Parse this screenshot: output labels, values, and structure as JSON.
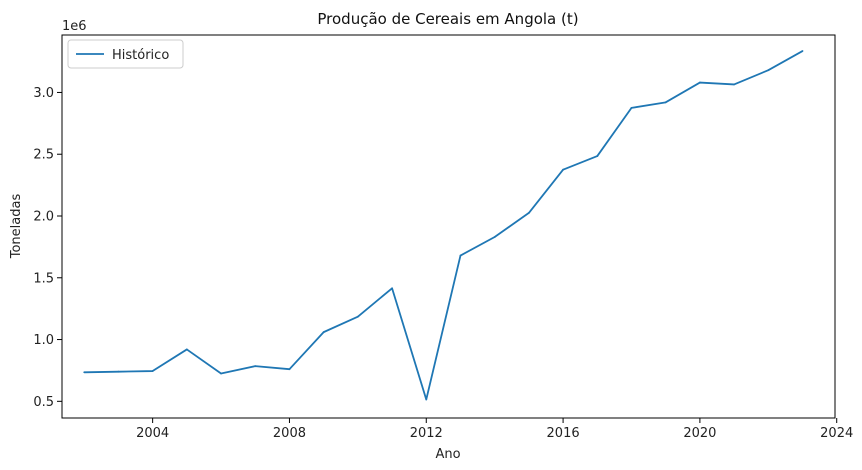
{
  "chart_data": {
    "type": "line",
    "title": "Produção de Cereais em Angola (t)",
    "xlabel": "Ano",
    "ylabel": "Toneladas",
    "y_offset_label": "1e6",
    "xlim": [
      2001.35,
      2023.95
    ],
    "ylim": [
      0.365,
      3.465
    ],
    "y_scale_multiplier": 1000000,
    "x_ticks": [
      2004,
      2008,
      2012,
      2016,
      2020,
      2024
    ],
    "y_ticks": [
      0.5,
      1.0,
      1.5,
      2.0,
      2.5,
      3.0
    ],
    "y_tick_labels": [
      "0.5",
      "1.0",
      "1.5",
      "2.0",
      "2.5",
      "3.0"
    ],
    "grid": false,
    "legend_position": "upper-left",
    "series": [
      {
        "name": "Histórico",
        "color": "#1f77b4",
        "x": [
          2002,
          2003,
          2004,
          2005,
          2006,
          2007,
          2008,
          2009,
          2010,
          2011,
          2012,
          2013,
          2014,
          2015,
          2016,
          2017,
          2018,
          2019,
          2020,
          2021,
          2022,
          2023
        ],
        "y": [
          0.735,
          0.74,
          0.745,
          0.92,
          0.725,
          0.785,
          0.76,
          1.06,
          1.185,
          1.415,
          0.515,
          1.68,
          1.83,
          2.025,
          2.375,
          2.485,
          2.875,
          2.92,
          3.08,
          3.065,
          3.18,
          3.335
        ]
      }
    ]
  }
}
